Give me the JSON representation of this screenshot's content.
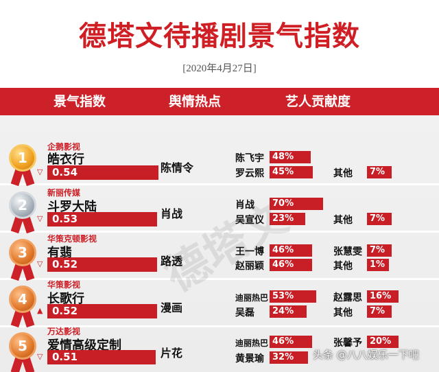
{
  "title": "德塔文待播剧景气指数",
  "date": "[2020年4月27日]",
  "headers": {
    "index": "景气指数",
    "hotspot": "舆情热点",
    "contribution": "艺人贡献度"
  },
  "watermark": "德塔文",
  "footer": "头条 @八八娱乐一下吧",
  "colors": {
    "accent": "#cc2128",
    "bg": "#efefef"
  },
  "rows": [
    {
      "rank": "1",
      "medal": "gold",
      "company": "企鹅影视",
      "drama": "皓衣行",
      "index": "0.54",
      "index_value": 0.54,
      "trend": "▽",
      "trend_dir": "down",
      "hotspot": "陈情令",
      "actors": [
        {
          "name": "陈飞宇",
          "pct": "48%",
          "pct_value": 48
        },
        {
          "name": "罗云熙",
          "pct": "45%",
          "pct_value": 45
        },
        {
          "name": "其他",
          "pct": "7%",
          "pct_value": 7
        }
      ]
    },
    {
      "rank": "2",
      "medal": "silver",
      "company": "新丽传媒",
      "drama": "斗罗大陆",
      "index": "0.53",
      "index_value": 0.53,
      "trend": "▽",
      "trend_dir": "down",
      "hotspot": "肖战",
      "actors": [
        {
          "name": "肖战",
          "pct": "70%",
          "pct_value": 70
        },
        {
          "name": "吴宣仪",
          "pct": "23%",
          "pct_value": 23
        },
        {
          "name": "其他",
          "pct": "7%",
          "pct_value": 7
        }
      ]
    },
    {
      "rank": "3",
      "medal": "bronze",
      "company": "华策克顿影视",
      "drama": "有翡",
      "index": "0.52",
      "index_value": 0.52,
      "trend": "▽",
      "trend_dir": "down",
      "hotspot": "路透",
      "actors": [
        {
          "name": "王一博",
          "pct": "46%",
          "pct_value": 46
        },
        {
          "name": "赵丽颖",
          "pct": "46%",
          "pct_value": 46
        },
        {
          "name": "张慧雯",
          "pct": "7%",
          "pct_value": 7
        },
        {
          "name": "其他",
          "pct": "1%",
          "pct_value": 1
        }
      ]
    },
    {
      "rank": "4",
      "medal": "bronze",
      "company": "华策影视",
      "drama": "长歌行",
      "index": "0.52",
      "index_value": 0.52,
      "trend": "▲",
      "trend_dir": "up",
      "hotspot": "漫画",
      "actors": [
        {
          "name": "迪丽热巴",
          "pct": "53%",
          "pct_value": 53
        },
        {
          "name": "吴磊",
          "pct": "24%",
          "pct_value": 24
        },
        {
          "name": "赵露思",
          "pct": "16%",
          "pct_value": 16
        },
        {
          "name": "其他",
          "pct": "7%",
          "pct_value": 7
        }
      ]
    },
    {
      "rank": "5",
      "medal": "bronze",
      "company": "万达影视",
      "drama": "爱情高级定制",
      "index": "0.51",
      "index_value": 0.51,
      "trend": "▽",
      "trend_dir": "down",
      "hotspot": "片花",
      "actors": [
        {
          "name": "迪丽热巴",
          "pct": "46%",
          "pct_value": 46
        },
        {
          "name": "黄景瑜",
          "pct": "32%",
          "pct_value": 32
        },
        {
          "name": "张馨予",
          "pct": "20%",
          "pct_value": 20
        }
      ]
    }
  ]
}
